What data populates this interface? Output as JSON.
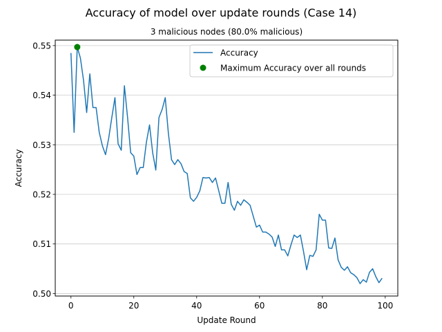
{
  "chart_data": {
    "type": "line",
    "title": "Accuracy of model over update rounds (Case 14)",
    "subtitle": "3 malicious nodes (80.0% malicious)",
    "xlabel": "Update Round",
    "ylabel": "Accuracy",
    "xlim": [
      -5,
      104
    ],
    "ylim": [
      0.4995,
      0.5511
    ],
    "xticks": [
      0,
      20,
      40,
      60,
      80,
      100
    ],
    "yticks": [
      0.5,
      0.51,
      0.52,
      0.53,
      0.54,
      0.55
    ],
    "xtick_labels": [
      "0",
      "20",
      "40",
      "60",
      "80",
      "100"
    ],
    "ytick_labels": [
      "0.50",
      "0.51",
      "0.52",
      "0.53",
      "0.54",
      "0.55"
    ],
    "grid": "horizontal",
    "legend_position": "upper right",
    "series": [
      {
        "name": "Accuracy",
        "color": "#1f77b4",
        "x": [
          0,
          1,
          2,
          3,
          4,
          5,
          6,
          7,
          8,
          9,
          10,
          11,
          12,
          13,
          14,
          15,
          16,
          17,
          18,
          19,
          20,
          21,
          22,
          23,
          24,
          25,
          26,
          27,
          28,
          29,
          30,
          31,
          32,
          33,
          34,
          35,
          36,
          37,
          38,
          39,
          40,
          41,
          42,
          43,
          44,
          45,
          46,
          47,
          48,
          49,
          50,
          51,
          52,
          53,
          54,
          55,
          56,
          57,
          58,
          59,
          60,
          61,
          62,
          63,
          64,
          65,
          66,
          67,
          68,
          69,
          70,
          71,
          72,
          73,
          74,
          75,
          76,
          77,
          78,
          79,
          80,
          81,
          82,
          83,
          84,
          85,
          86,
          87,
          88,
          89,
          90,
          91,
          92,
          93,
          94,
          95,
          96,
          97,
          98,
          99
        ],
        "values": [
          0.5485,
          0.5325,
          0.5497,
          0.5475,
          0.543,
          0.5365,
          0.5443,
          0.5375,
          0.5375,
          0.5325,
          0.5298,
          0.528,
          0.5313,
          0.5355,
          0.5395,
          0.5302,
          0.5289,
          0.5419,
          0.5356,
          0.5284,
          0.5277,
          0.524,
          0.5254,
          0.5254,
          0.5305,
          0.534,
          0.5284,
          0.5249,
          0.5355,
          0.5371,
          0.5395,
          0.5323,
          0.527,
          0.526,
          0.527,
          0.5262,
          0.5246,
          0.5242,
          0.5193,
          0.5186,
          0.5194,
          0.5207,
          0.5234,
          0.5233,
          0.5234,
          0.5224,
          0.5233,
          0.5208,
          0.5182,
          0.5182,
          0.5224,
          0.518,
          0.5168,
          0.5186,
          0.5178,
          0.5189,
          0.5184,
          0.5178,
          0.5156,
          0.5134,
          0.5138,
          0.5124,
          0.5124,
          0.512,
          0.5114,
          0.5095,
          0.5118,
          0.5088,
          0.5088,
          0.5076,
          0.5098,
          0.5118,
          0.5113,
          0.5118,
          0.5085,
          0.5048,
          0.5077,
          0.5075,
          0.5088,
          0.516,
          0.5148,
          0.5148,
          0.5092,
          0.5091,
          0.5112,
          0.5068,
          0.5053,
          0.5047,
          0.5054,
          0.5042,
          0.5038,
          0.5032,
          0.502,
          0.5028,
          0.5023,
          0.5043,
          0.505,
          0.5034,
          0.5022,
          0.5031
        ]
      }
    ],
    "highlight": {
      "name": "Maximum Accuracy over all rounds",
      "x": 2,
      "y": 0.5497,
      "color": "#008000"
    }
  }
}
